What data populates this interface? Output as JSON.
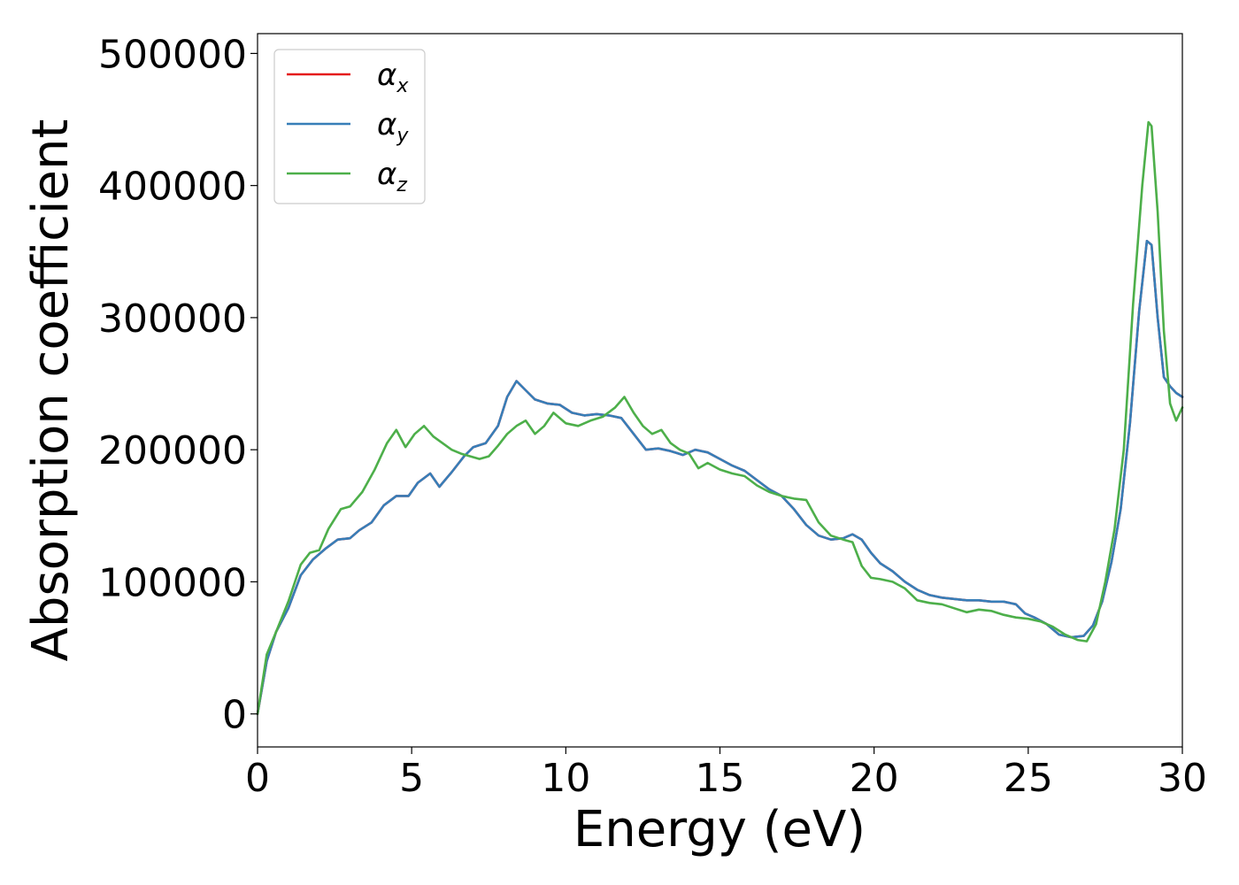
{
  "chart_data": {
    "type": "line",
    "xlabel": "Energy (eV)",
    "ylabel": "Absorption coefficient",
    "xlim": [
      0,
      30
    ],
    "ylim": [
      -25000,
      515000
    ],
    "xticks": [
      "0",
      "5",
      "10",
      "15",
      "20",
      "25",
      "30"
    ],
    "yticks": [
      "0",
      "100000",
      "200000",
      "300000",
      "400000",
      "500000"
    ],
    "grid": false,
    "legend_position": "top-left",
    "series": [
      {
        "name": "α",
        "subscript": "x",
        "color": "#e41a1c",
        "x": [
          0,
          0.3,
          0.6,
          1.0,
          1.4,
          1.8,
          2.2,
          2.6,
          3.0,
          3.3,
          3.7,
          4.1,
          4.5,
          4.9,
          5.2,
          5.6,
          5.9,
          6.3,
          6.7,
          7.0,
          7.4,
          7.8,
          8.1,
          8.4,
          8.7,
          9.0,
          9.4,
          9.8,
          10.2,
          10.6,
          11.0,
          11.4,
          11.8,
          12.2,
          12.6,
          13.0,
          13.4,
          13.8,
          14.2,
          14.6,
          15.0,
          15.4,
          15.8,
          16.2,
          16.6,
          17.0,
          17.4,
          17.8,
          18.2,
          18.6,
          19.0,
          19.3,
          19.6,
          19.9,
          20.2,
          20.6,
          21.0,
          21.4,
          21.8,
          22.2,
          22.6,
          23.0,
          23.4,
          23.8,
          24.2,
          24.6,
          24.9,
          25.2,
          25.6,
          26.0,
          26.4,
          26.8,
          27.1,
          27.4,
          27.7,
          28.0,
          28.3,
          28.6,
          28.85,
          29.0,
          29.2,
          29.4,
          29.6,
          29.8,
          30.0
        ],
        "y": [
          0,
          40000,
          62000,
          80000,
          105000,
          117000,
          125000,
          132000,
          133000,
          139000,
          145000,
          158000,
          165000,
          165000,
          175000,
          182000,
          172000,
          183000,
          195000,
          202000,
          205000,
          218000,
          240000,
          252000,
          245000,
          238000,
          235000,
          234000,
          228000,
          226000,
          227000,
          226000,
          224000,
          212000,
          200000,
          201000,
          199000,
          196000,
          200000,
          198000,
          193000,
          188000,
          184000,
          177000,
          170000,
          165000,
          155000,
          143000,
          135000,
          132000,
          133000,
          136000,
          132000,
          122000,
          114000,
          108000,
          100000,
          94000,
          90000,
          88000,
          87000,
          86000,
          86000,
          85000,
          85000,
          83000,
          76000,
          73000,
          68000,
          60000,
          58000,
          59000,
          67000,
          85000,
          115000,
          155000,
          220000,
          305000,
          358000,
          355000,
          300000,
          255000,
          248000,
          243000,
          240000
        ]
      },
      {
        "name": "α",
        "subscript": "y",
        "color": "#377eb8",
        "x": [
          0,
          0.3,
          0.6,
          1.0,
          1.4,
          1.8,
          2.2,
          2.6,
          3.0,
          3.3,
          3.7,
          4.1,
          4.5,
          4.9,
          5.2,
          5.6,
          5.9,
          6.3,
          6.7,
          7.0,
          7.4,
          7.8,
          8.1,
          8.4,
          8.7,
          9.0,
          9.4,
          9.8,
          10.2,
          10.6,
          11.0,
          11.4,
          11.8,
          12.2,
          12.6,
          13.0,
          13.4,
          13.8,
          14.2,
          14.6,
          15.0,
          15.4,
          15.8,
          16.2,
          16.6,
          17.0,
          17.4,
          17.8,
          18.2,
          18.6,
          19.0,
          19.3,
          19.6,
          19.9,
          20.2,
          20.6,
          21.0,
          21.4,
          21.8,
          22.2,
          22.6,
          23.0,
          23.4,
          23.8,
          24.2,
          24.6,
          24.9,
          25.2,
          25.6,
          26.0,
          26.4,
          26.8,
          27.1,
          27.4,
          27.7,
          28.0,
          28.3,
          28.6,
          28.85,
          29.0,
          29.2,
          29.4,
          29.6,
          29.8,
          30.0
        ],
        "y": [
          0,
          40000,
          62000,
          80000,
          105000,
          117000,
          125000,
          132000,
          133000,
          139000,
          145000,
          158000,
          165000,
          165000,
          175000,
          182000,
          172000,
          183000,
          195000,
          202000,
          205000,
          218000,
          240000,
          252000,
          245000,
          238000,
          235000,
          234000,
          228000,
          226000,
          227000,
          226000,
          224000,
          212000,
          200000,
          201000,
          199000,
          196000,
          200000,
          198000,
          193000,
          188000,
          184000,
          177000,
          170000,
          165000,
          155000,
          143000,
          135000,
          132000,
          133000,
          136000,
          132000,
          122000,
          114000,
          108000,
          100000,
          94000,
          90000,
          88000,
          87000,
          86000,
          86000,
          85000,
          85000,
          83000,
          76000,
          73000,
          68000,
          60000,
          58000,
          59000,
          67000,
          85000,
          115000,
          155000,
          220000,
          305000,
          358000,
          355000,
          300000,
          255000,
          248000,
          243000,
          240000
        ]
      },
      {
        "name": "α",
        "subscript": "z",
        "color": "#4daf4a",
        "x": [
          0,
          0.3,
          0.6,
          1.0,
          1.4,
          1.7,
          2.0,
          2.3,
          2.7,
          3.0,
          3.4,
          3.8,
          4.2,
          4.5,
          4.8,
          5.1,
          5.4,
          5.7,
          6.0,
          6.3,
          6.6,
          6.9,
          7.2,
          7.5,
          7.8,
          8.1,
          8.4,
          8.7,
          9.0,
          9.3,
          9.6,
          10.0,
          10.4,
          10.8,
          11.2,
          11.6,
          11.9,
          12.2,
          12.5,
          12.8,
          13.1,
          13.4,
          13.7,
          14.0,
          14.3,
          14.6,
          15.0,
          15.4,
          15.8,
          16.2,
          16.6,
          17.0,
          17.4,
          17.8,
          18.2,
          18.6,
          19.0,
          19.3,
          19.6,
          19.9,
          20.2,
          20.6,
          21.0,
          21.4,
          21.8,
          22.2,
          22.6,
          23.0,
          23.4,
          23.8,
          24.2,
          24.6,
          25.0,
          25.4,
          25.8,
          26.2,
          26.6,
          26.9,
          27.2,
          27.5,
          27.8,
          28.1,
          28.4,
          28.7,
          28.9,
          29.0,
          29.2,
          29.4,
          29.6,
          29.8,
          30.0
        ],
        "y": [
          0,
          45000,
          62000,
          85000,
          113000,
          122000,
          124000,
          140000,
          155000,
          157000,
          168000,
          185000,
          205000,
          215000,
          202000,
          212000,
          218000,
          210000,
          205000,
          200000,
          197000,
          195000,
          193000,
          195000,
          203000,
          212000,
          218000,
          222000,
          212000,
          218000,
          228000,
          220000,
          218000,
          222000,
          225000,
          232000,
          240000,
          228000,
          218000,
          212000,
          215000,
          205000,
          200000,
          197000,
          186000,
          190000,
          185000,
          182000,
          180000,
          173000,
          168000,
          165000,
          163000,
          162000,
          145000,
          135000,
          132000,
          130000,
          112000,
          103000,
          102000,
          100000,
          95000,
          86000,
          84000,
          83000,
          80000,
          77000,
          79000,
          78000,
          75000,
          73000,
          72000,
          70000,
          66000,
          60000,
          56000,
          55000,
          68000,
          100000,
          140000,
          200000,
          310000,
          400000,
          448000,
          445000,
          380000,
          290000,
          235000,
          222000,
          232000
        ]
      }
    ]
  }
}
